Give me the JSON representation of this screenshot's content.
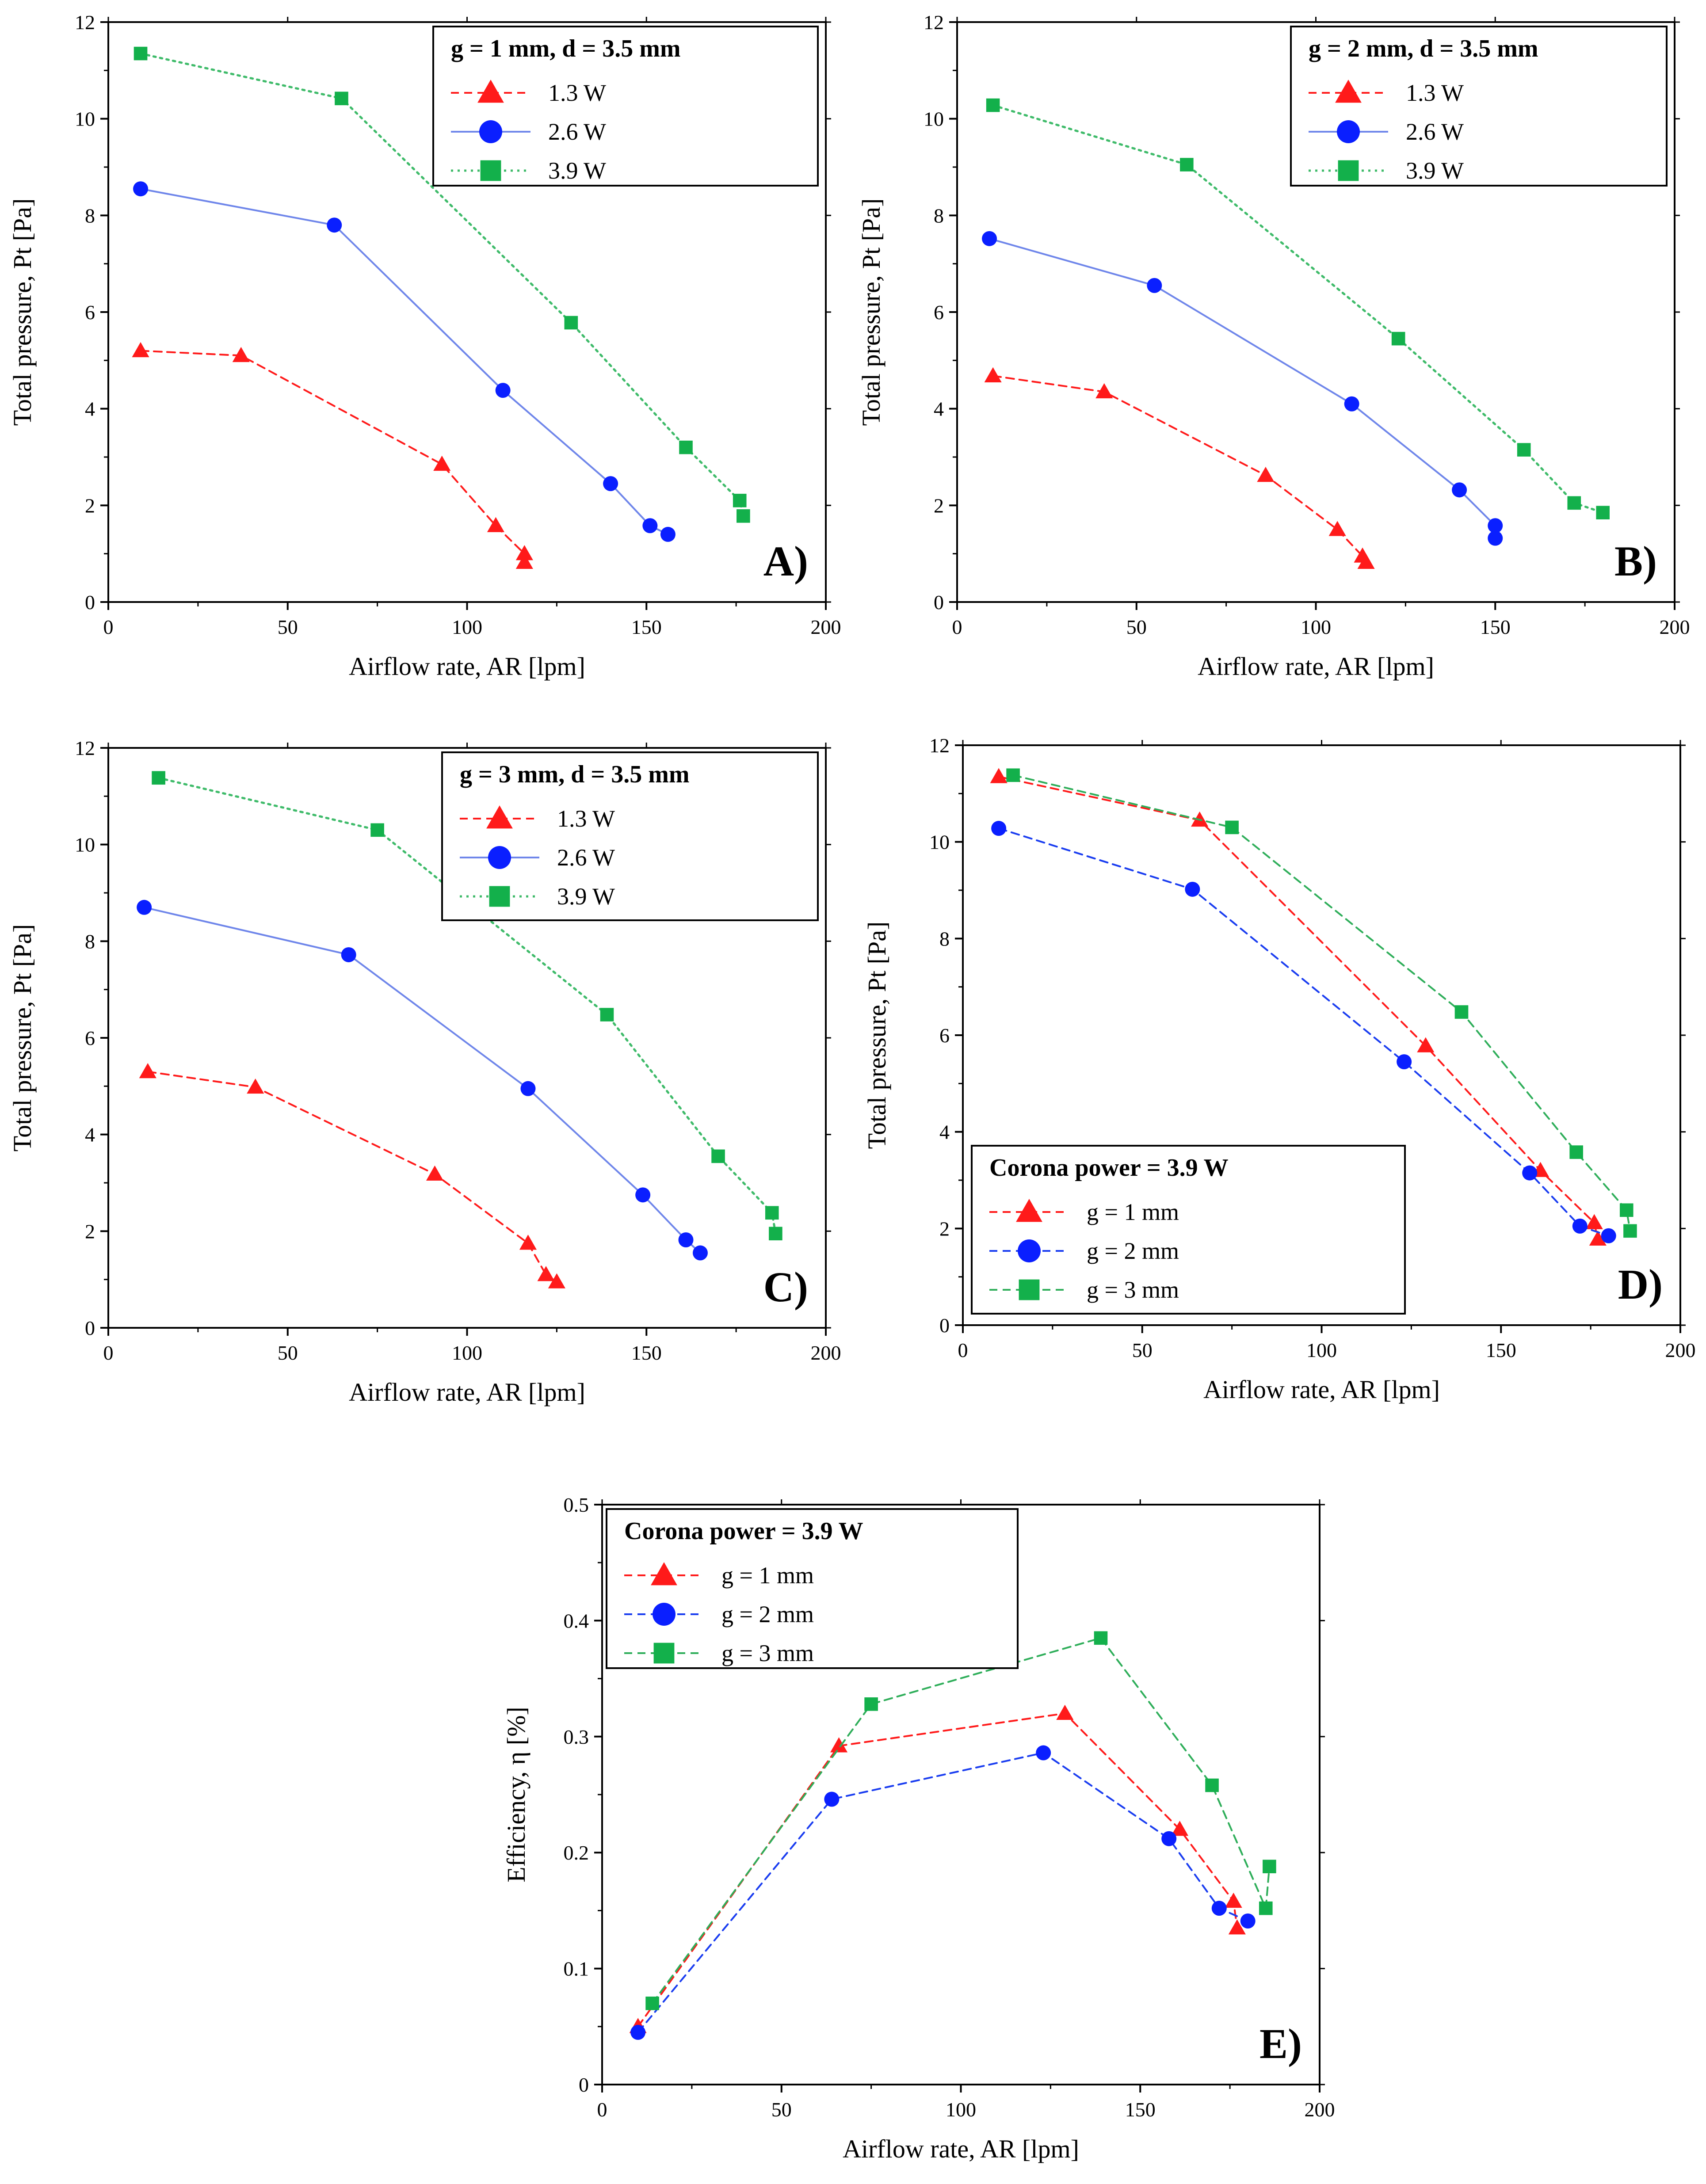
{
  "colors": {
    "triangle": "#ff1a1a",
    "circle": "#0a1fff",
    "square": "#13b04b",
    "blue_line": "#6f86ea",
    "red_line": "#ff1a1a",
    "green_line_dotted": "#3fbb6a",
    "blue_line_dashed": "#1a3df0",
    "green_line_dashed": "#2fae5a"
  },
  "chart_data": [
    {
      "type": "line",
      "panel_label": "A)",
      "xlabel": "Airflow rate, AR [lpm]",
      "ylabel": "Total pressure, Pt [Pa]",
      "xlim": [
        0,
        200
      ],
      "ylim": [
        0,
        12
      ],
      "xticks": [
        "0",
        "50",
        "100",
        "150",
        "200"
      ],
      "yticks": [
        "0",
        "2",
        "4",
        "6",
        "8",
        "10",
        "12"
      ],
      "legend_title": "g = 1 mm, d = 3.5 mm",
      "legend_position": "top-right",
      "series": [
        {
          "name": "1.3 W",
          "marker": "triangle",
          "line": "dashed",
          "color": "#ff1a1a",
          "x": [
            9,
            37,
            93,
            108,
            116,
            116
          ],
          "y": [
            5.2,
            5.1,
            2.85,
            1.58,
            1.0,
            0.82
          ]
        },
        {
          "name": "2.6 W",
          "marker": "circle",
          "line": "solid",
          "color": "#0a1fff",
          "line_color": "#6f86ea",
          "x": [
            9,
            63,
            110,
            140,
            151,
            156
          ],
          "y": [
            8.55,
            7.8,
            4.38,
            2.45,
            1.58,
            1.4
          ]
        },
        {
          "name": "3.9 W",
          "marker": "square",
          "line": "dotted",
          "color": "#13b04b",
          "line_color": "#3fbb6a",
          "x": [
            9,
            65,
            129,
            161,
            176,
            177
          ],
          "y": [
            11.35,
            10.42,
            5.78,
            3.2,
            2.1,
            1.78
          ]
        }
      ]
    },
    {
      "type": "line",
      "panel_label": "B)",
      "xlabel": "Airflow rate, AR [lpm]",
      "ylabel": "Total pressure, Pt [Pa]",
      "xlim": [
        0,
        200
      ],
      "ylim": [
        0,
        12
      ],
      "xticks": [
        "0",
        "50",
        "100",
        "150",
        "200"
      ],
      "yticks": [
        "0",
        "2",
        "4",
        "6",
        "8",
        "10",
        "12"
      ],
      "legend_title": "g = 2 mm, d = 3.5 mm",
      "legend_position": "top-right",
      "series": [
        {
          "name": "1.3 W",
          "marker": "triangle",
          "line": "dashed",
          "color": "#ff1a1a",
          "x": [
            10,
            41,
            86,
            106,
            113,
            114
          ],
          "y": [
            4.68,
            4.35,
            2.62,
            1.5,
            0.95,
            0.82
          ]
        },
        {
          "name": "2.6 W",
          "marker": "circle",
          "line": "solid",
          "color": "#0a1fff",
          "line_color": "#6f86ea",
          "x": [
            9,
            55,
            110,
            140,
            150,
            150
          ],
          "y": [
            7.52,
            6.55,
            4.1,
            2.32,
            1.58,
            1.32
          ]
        },
        {
          "name": "3.9 W",
          "marker": "square",
          "line": "dotted",
          "color": "#13b04b",
          "line_color": "#3fbb6a",
          "x": [
            10,
            64,
            123,
            158,
            172,
            180
          ],
          "y": [
            10.28,
            9.05,
            5.45,
            3.15,
            2.05,
            1.85
          ]
        }
      ]
    },
    {
      "type": "line",
      "panel_label": "C)",
      "xlabel": "Airflow rate, AR [lpm]",
      "ylabel": "Total pressure, Pt [Pa]",
      "xlim": [
        0,
        200
      ],
      "ylim": [
        0,
        12
      ],
      "xticks": [
        "0",
        "50",
        "100",
        "150",
        "200"
      ],
      "yticks": [
        "0",
        "2",
        "4",
        "6",
        "8",
        "10",
        "12"
      ],
      "legend_title": "g = 3 mm, d = 3.5 mm",
      "legend_position": "top-right",
      "series": [
        {
          "name": "1.3 W",
          "marker": "triangle",
          "line": "dashed",
          "color": "#ff1a1a",
          "x": [
            11,
            41,
            91,
            117,
            122,
            125
          ],
          "y": [
            5.3,
            4.98,
            3.18,
            1.75,
            1.1,
            0.95
          ]
        },
        {
          "name": "2.6 W",
          "marker": "circle",
          "line": "solid",
          "color": "#0a1fff",
          "line_color": "#6f86ea",
          "x": [
            10,
            67,
            117,
            149,
            161,
            165
          ],
          "y": [
            8.7,
            7.72,
            4.95,
            2.75,
            1.82,
            1.55
          ]
        },
        {
          "name": "3.9 W",
          "marker": "square",
          "line": "dotted",
          "color": "#13b04b",
          "line_color": "#3fbb6a",
          "x": [
            14,
            75,
            139,
            170,
            185,
            186
          ],
          "y": [
            11.38,
            10.3,
            6.48,
            3.55,
            2.38,
            1.95
          ]
        }
      ]
    },
    {
      "type": "line",
      "panel_label": "D)",
      "xlabel": "Airflow rate, AR [lpm]",
      "ylabel": "Total pressure, Pt [Pa]",
      "xlim": [
        0,
        200
      ],
      "ylim": [
        0,
        12
      ],
      "xticks": [
        "0",
        "50",
        "100",
        "150",
        "200"
      ],
      "yticks": [
        "0",
        "2",
        "4",
        "6",
        "8",
        "10",
        "12"
      ],
      "legend_title": "Corona power = 3.9 W",
      "legend_position": "bottom-left",
      "series": [
        {
          "name": "g = 1 mm",
          "marker": "triangle",
          "line": "dashed",
          "color": "#ff1a1a",
          "x": [
            10,
            66,
            129,
            161,
            176,
            177
          ],
          "y": [
            11.35,
            10.45,
            5.78,
            3.2,
            2.12,
            1.78
          ]
        },
        {
          "name": "g = 2 mm",
          "marker": "circle",
          "line": "dashed",
          "color": "#0a1fff",
          "line_color": "#1a3df0",
          "x": [
            10,
            64,
            123,
            158,
            172,
            180
          ],
          "y": [
            10.28,
            9.02,
            5.45,
            3.15,
            2.05,
            1.85
          ]
        },
        {
          "name": "g = 3 mm",
          "marker": "square",
          "line": "dashed",
          "color": "#13b04b",
          "line_color": "#2fae5a",
          "x": [
            14,
            75,
            139,
            171,
            185,
            186
          ],
          "y": [
            11.38,
            10.3,
            6.48,
            3.58,
            2.38,
            1.95
          ]
        }
      ]
    },
    {
      "type": "line",
      "panel_label": "E)",
      "xlabel": "Airflow rate, AR [lpm]",
      "ylabel": "Efficiency, η [%]",
      "xlim": [
        0,
        200
      ],
      "ylim": [
        0,
        0.5
      ],
      "xticks": [
        "0",
        "50",
        "100",
        "150",
        "200"
      ],
      "yticks": [
        "0",
        "0.1",
        "0.2",
        "0.3",
        "0.4",
        "0.5"
      ],
      "legend_title": "Corona power = 3.9 W",
      "legend_position": "top-left",
      "series": [
        {
          "name": "g = 1 mm",
          "marker": "triangle",
          "line": "dashed",
          "color": "#ff1a1a",
          "x": [
            10,
            66,
            129,
            161,
            176,
            177
          ],
          "y": [
            0.05,
            0.292,
            0.32,
            0.22,
            0.158,
            0.135
          ]
        },
        {
          "name": "g = 2 mm",
          "marker": "circle",
          "line": "dashed",
          "color": "#0a1fff",
          "line_color": "#1a3df0",
          "x": [
            10,
            64,
            123,
            158,
            172,
            180
          ],
          "y": [
            0.045,
            0.246,
            0.286,
            0.212,
            0.152,
            0.141
          ]
        },
        {
          "name": "g = 3 mm",
          "marker": "square",
          "line": "dashed",
          "color": "#13b04b",
          "line_color": "#2fae5a",
          "x": [
            14,
            75,
            139,
            170,
            185,
            186
          ],
          "y": [
            0.07,
            0.328,
            0.385,
            0.258,
            0.152,
            0.188
          ]
        }
      ]
    }
  ]
}
